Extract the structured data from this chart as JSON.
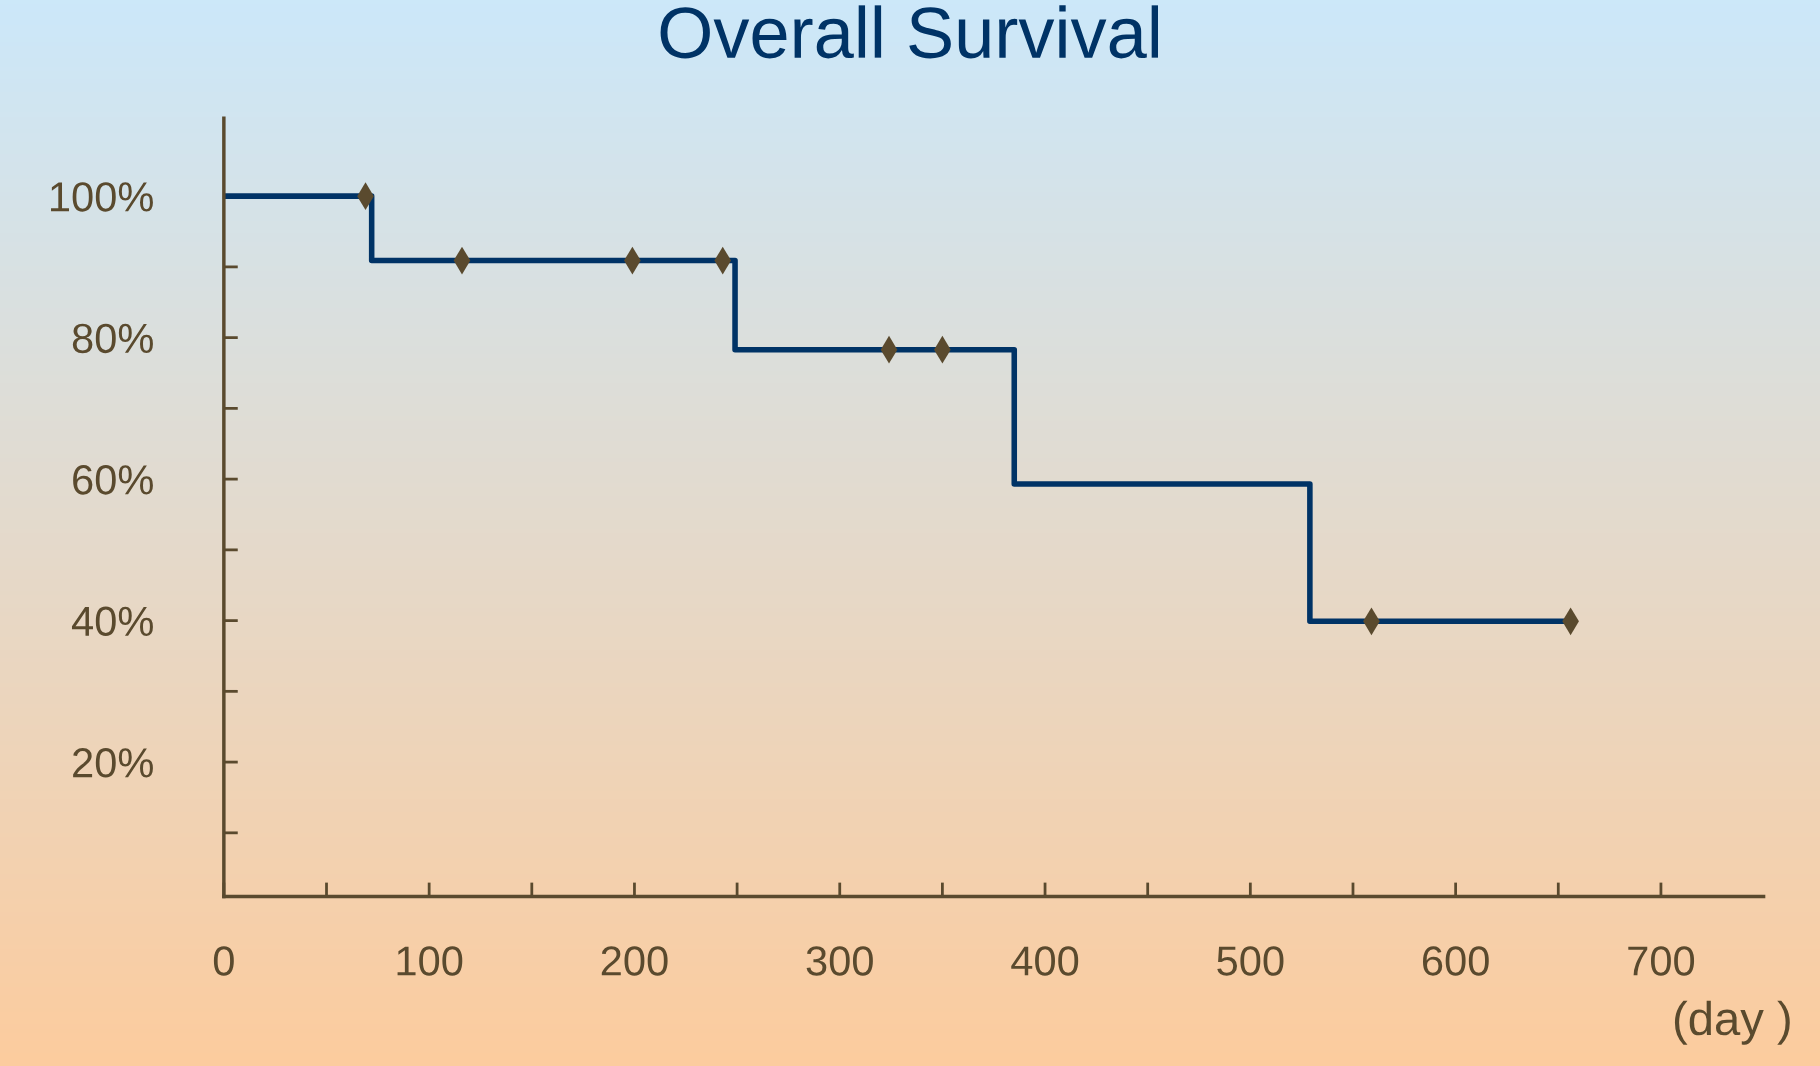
{
  "chart_data": {
    "type": "step",
    "title": "Overall Survival",
    "xlabel": "(day )",
    "series": [
      {
        "color": "#003366",
        "x": [
          0,
          72,
          249,
          385,
          529,
          656
        ],
        "values": [
          100,
          90.9,
          78.3,
          59.3,
          39.9,
          39.9
        ]
      },
      {
        "type": "scatter",
        "color": "#5a4a2e",
        "x": [
          69,
          116,
          199,
          243,
          324,
          350,
          559,
          656
        ],
        "values": [
          100,
          90.9,
          90.9,
          90.9,
          78.3,
          78.3,
          39.9,
          39.9
        ]
      }
    ],
    "xlim": [
      0,
      750
    ],
    "ylim": [
      1,
      111
    ],
    "xticks": [
      0,
      {
        "value": 50,
        "label": null
      },
      100,
      {
        "value": 150,
        "label": null
      },
      200,
      {
        "value": 250,
        "label": null
      },
      300,
      {
        "value": 350,
        "label": null
      },
      400,
      {
        "value": 450,
        "label": null
      },
      500,
      {
        "value": 550,
        "label": null
      },
      600,
      {
        "value": 650,
        "label": null
      },
      700
    ],
    "yticks": [
      {
        "value": 10,
        "label": null
      },
      {
        "value": 20,
        "label": "20%"
      },
      {
        "value": 30,
        "label": null
      },
      {
        "value": 40,
        "label": "40%"
      },
      {
        "value": 50,
        "label": null
      },
      {
        "value": 60,
        "label": "60%"
      },
      {
        "value": 70,
        "label": null
      },
      {
        "value": 80,
        "label": "80%"
      },
      {
        "value": 90,
        "label": null
      },
      {
        "value": 100,
        "label": "100%"
      }
    ],
    "grid": false,
    "legend": false
  }
}
